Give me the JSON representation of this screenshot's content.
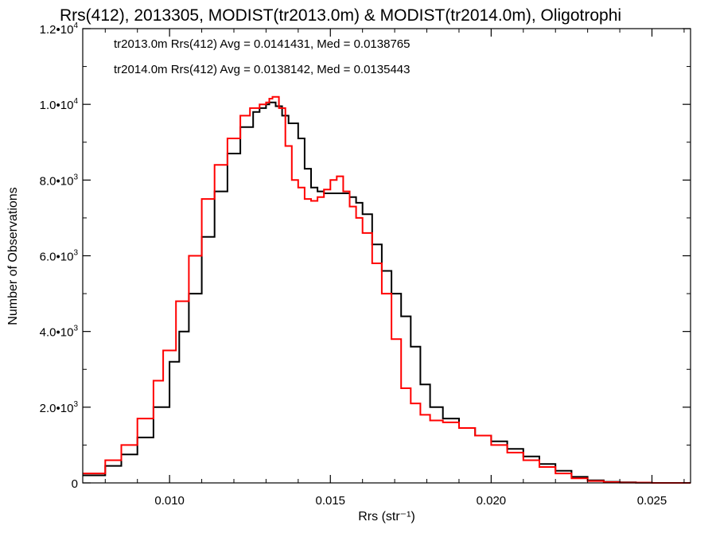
{
  "chart_data": {
    "type": "line",
    "title": "Rrs(412), 2013305, MODIST(tr2013.0m) & MODIST(tr2014.0m), Oligotrophi",
    "xlabel": "Rrs (str⁻¹)",
    "ylabel": "Number of Observations",
    "xlim": [
      0.0073,
      0.0262
    ],
    "ylim": [
      0,
      12000
    ],
    "x_ticks": [
      {
        "value": 0.01,
        "label": "0.010"
      },
      {
        "value": 0.015,
        "label": "0.015"
      },
      {
        "value": 0.02,
        "label": "0.020"
      },
      {
        "value": 0.025,
        "label": "0.025"
      }
    ],
    "y_ticks": [
      {
        "value": 0,
        "label": "0"
      },
      {
        "value": 2000,
        "label": "2.0•10",
        "exp": "3"
      },
      {
        "value": 4000,
        "label": "4.0•10",
        "exp": "3"
      },
      {
        "value": 6000,
        "label": "6.0•10",
        "exp": "3"
      },
      {
        "value": 8000,
        "label": "8.0•10",
        "exp": "3"
      },
      {
        "value": 10000,
        "label": "1.0•10",
        "exp": "4"
      },
      {
        "value": 12000,
        "label": "1.2•10",
        "exp": "4"
      }
    ],
    "legend_position": "top-left",
    "series": [
      {
        "name": "tr2013.0m Rrs(412) Avg = 0.0141431, Med = 0.0138765",
        "color": "#000000",
        "x": [
          0.0073,
          0.008,
          0.0085,
          0.009,
          0.0095,
          0.01,
          0.0103,
          0.0106,
          0.011,
          0.0114,
          0.0118,
          0.0122,
          0.0126,
          0.0128,
          0.013,
          0.0131,
          0.0133,
          0.0135,
          0.0137,
          0.014,
          0.0142,
          0.0144,
          0.0146,
          0.0148,
          0.015,
          0.0152,
          0.0154,
          0.0156,
          0.0158,
          0.016,
          0.0163,
          0.0166,
          0.0169,
          0.0172,
          0.0175,
          0.0178,
          0.0181,
          0.0185,
          0.019,
          0.0195,
          0.02,
          0.0205,
          0.021,
          0.0215,
          0.022,
          0.0225,
          0.023,
          0.0235,
          0.024,
          0.0245,
          0.025,
          0.0262
        ],
        "y": [
          200,
          450,
          750,
          1200,
          2000,
          3200,
          4000,
          5000,
          6500,
          7700,
          8700,
          9400,
          9800,
          9900,
          10000,
          10050,
          9950,
          9700,
          9500,
          9100,
          8300,
          7800,
          7700,
          7650,
          7650,
          7650,
          7650,
          7550,
          7400,
          7100,
          6300,
          5600,
          5000,
          4400,
          3600,
          2600,
          2000,
          1700,
          1450,
          1250,
          1100,
          900,
          700,
          500,
          320,
          160,
          70,
          30,
          15,
          5,
          0,
          0
        ]
      },
      {
        "name": "tr2014.0m Rrs(412) Avg = 0.0138142, Med = 0.0135443",
        "color": "#ff0000",
        "x": [
          0.0073,
          0.008,
          0.0085,
          0.009,
          0.0095,
          0.0098,
          0.0102,
          0.0106,
          0.011,
          0.0114,
          0.0118,
          0.0122,
          0.0125,
          0.0128,
          0.013,
          0.0131,
          0.0132,
          0.0134,
          0.0136,
          0.0138,
          0.014,
          0.0142,
          0.0144,
          0.0146,
          0.0148,
          0.015,
          0.0152,
          0.0154,
          0.0156,
          0.0158,
          0.016,
          0.0163,
          0.0166,
          0.0169,
          0.0172,
          0.0175,
          0.0178,
          0.0181,
          0.0185,
          0.019,
          0.0195,
          0.02,
          0.0205,
          0.021,
          0.0215,
          0.022,
          0.0225,
          0.023,
          0.0235,
          0.024,
          0.025,
          0.0262
        ],
        "y": [
          250,
          600,
          1000,
          1700,
          2700,
          3500,
          4800,
          6000,
          7500,
          8400,
          9100,
          9700,
          9900,
          10000,
          10050,
          10150,
          10200,
          9900,
          8900,
          8000,
          7800,
          7500,
          7450,
          7550,
          7750,
          8000,
          8100,
          7700,
          7300,
          7000,
          6600,
          5800,
          5000,
          3800,
          2500,
          2100,
          1800,
          1650,
          1600,
          1450,
          1250,
          1000,
          800,
          600,
          420,
          250,
          120,
          50,
          20,
          8,
          0,
          0
        ]
      }
    ]
  }
}
